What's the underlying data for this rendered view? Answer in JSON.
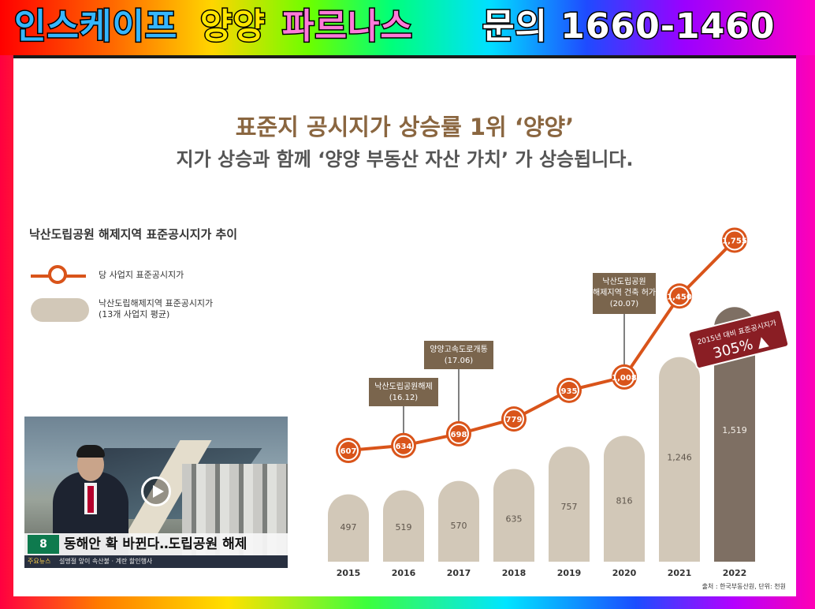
{
  "banner": {
    "part1": "인스케이프",
    "part2": "양양",
    "part3": "파르나스",
    "contact": "문의 1660-1460"
  },
  "headline": "표준지 공시지가 상승률 1위 ‘양양’",
  "subheadline": "지가 상승과 함께 ‘양양 부동산 자산 가치’ 가 상승됩니다.",
  "legend": {
    "title": "낙산도립공원 해제지역 표준공시지가 추이",
    "line_label": "당 사업지 표준공시지가",
    "bar_label_1": "낙산도립해제지역 표준공시지가",
    "bar_label_2": "(13개 사업지 평균)"
  },
  "video": {
    "logo": "8",
    "headline": "동해안 확 바뀐다‥도립공원 해제",
    "ticker_tag": "주요뉴스",
    "ticker_text": "설명절 앞이 속산불 · 계란 할인행사"
  },
  "chart_data": {
    "type": "bar",
    "categories": [
      "2015",
      "2016",
      "2017",
      "2018",
      "2019",
      "2020",
      "2021",
      "2022"
    ],
    "series": [
      {
        "kind": "bar",
        "values": [
          497,
          519,
          570,
          635,
          757,
          816,
          1246,
          1519
        ]
      },
      {
        "kind": "line",
        "values": [
          607,
          634,
          698,
          779,
          935,
          1008,
          1450,
          1755
        ]
      }
    ],
    "data_labels_line": [
      "607",
      "634",
      "698",
      "779",
      "935",
      "1,008",
      "1,450",
      "1,755"
    ],
    "data_labels_bar": [
      "497",
      "519",
      "570",
      "635",
      "757",
      "816",
      "1,246",
      "1,519"
    ],
    "annotations": [
      {
        "year": "2016",
        "lines": [
          "낙산도립공원해제",
          "(16.12)"
        ]
      },
      {
        "year": "2017",
        "lines": [
          "양양고속도로개통",
          "(17.06)"
        ]
      },
      {
        "year": "2020",
        "lines": [
          "낙산도립공원",
          "해제지역 건축 허가",
          "(20.07)"
        ]
      }
    ],
    "callout": {
      "lines": [
        "2015년 대비 표준공시지가",
        "305% ▲"
      ]
    },
    "source": "출처 : 한국부동산원, 단위: 천원",
    "colors": {
      "bar": "#d2c8b8",
      "bar_last": "#7e6f63",
      "line": "#d9541a",
      "annotation": "#7a654d",
      "callout": "#8a1e24"
    }
  }
}
